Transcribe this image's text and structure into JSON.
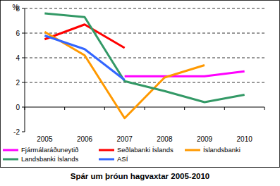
{
  "chart_data": {
    "type": "line",
    "title": "Spár um þróun hagvaxtar 2005-2010",
    "y_label": "%",
    "categories": [
      "2005",
      "2006",
      "2007",
      "2008",
      "2009",
      "2010"
    ],
    "series": [
      {
        "name": "Fjármálaráðuneytið",
        "color": "#ff00ff",
        "values": [
          null,
          null,
          2.5,
          2.5,
          2.5,
          2.9
        ]
      },
      {
        "name": "Seðlabanki Íslands",
        "color": "#ff0000",
        "values": [
          5.5,
          6.7,
          4.8,
          null,
          null,
          null
        ]
      },
      {
        "name": "Íslandsbanki",
        "color": "#ff9900",
        "values": [
          6.1,
          4.2,
          -0.9,
          2.4,
          3.4,
          null
        ]
      },
      {
        "name": "Landsbanki Íslands",
        "color": "#339966",
        "values": [
          7.6,
          7.3,
          2.1,
          1.3,
          0.4,
          1.0
        ]
      },
      {
        "name": "ASÍ",
        "color": "#3366ff",
        "values": [
          5.8,
          4.7,
          2.2,
          null,
          null,
          null
        ]
      }
    ],
    "ylim": [
      -2,
      8
    ],
    "yticks": [
      -2,
      0,
      2,
      4,
      6,
      8
    ],
    "grid": true,
    "legend": "bottom"
  }
}
